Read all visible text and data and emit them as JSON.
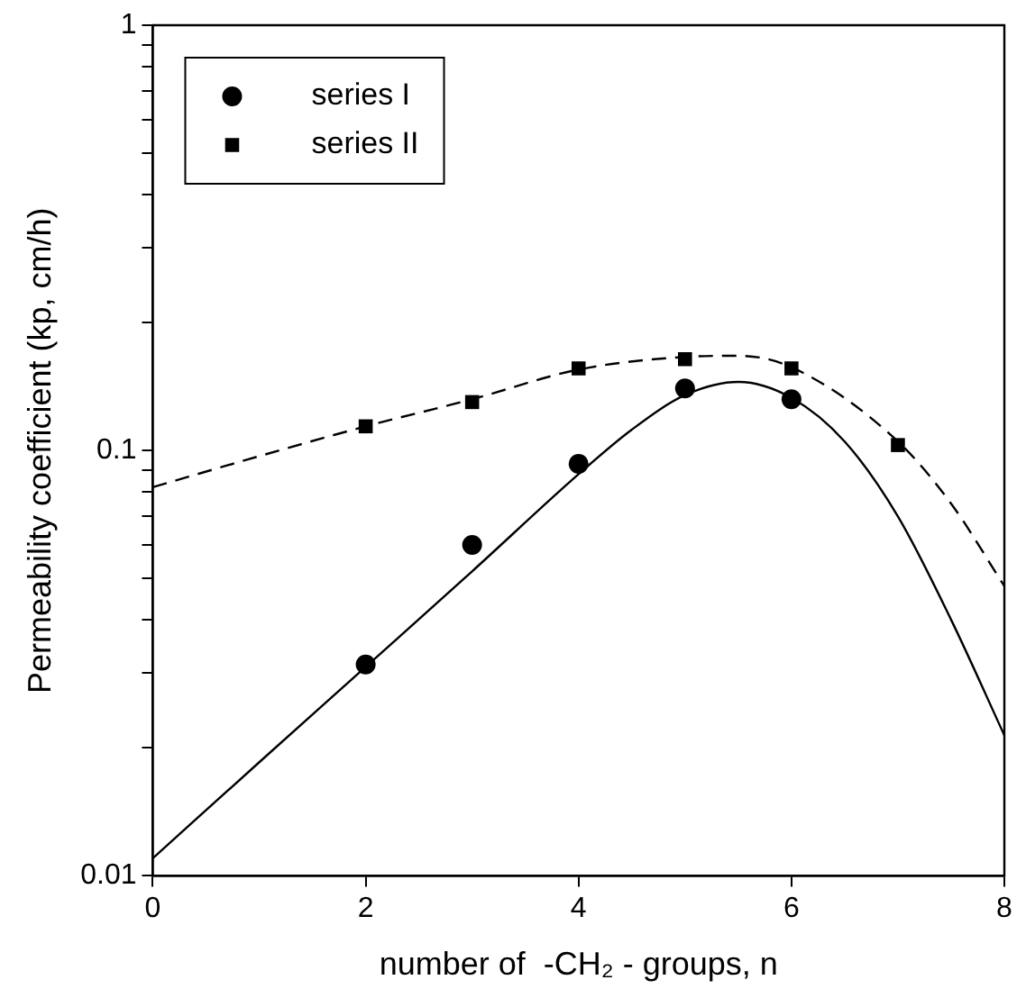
{
  "chart_data": {
    "type": "scatter",
    "xlabel": "number of  -CH₂ - groups, n",
    "ylabel": "Permeability coefficient (kp, cm/h)",
    "xlim": [
      0,
      8
    ],
    "xticks": [
      0,
      2,
      4,
      6,
      8
    ],
    "ylim": [
      0.01,
      1
    ],
    "yticks": [
      0.01,
      {
        "value": 0.02,
        "label": null
      },
      {
        "value": 0.03,
        "label": null
      },
      {
        "value": 0.04,
        "label": null
      },
      {
        "value": 0.05,
        "label": null
      },
      {
        "value": 0.06,
        "label": null
      },
      {
        "value": 0.07,
        "label": null
      },
      {
        "value": 0.08,
        "label": null
      },
      {
        "value": 0.09,
        "label": null
      },
      0.1,
      {
        "value": 0.2,
        "label": null
      },
      {
        "value": 0.3,
        "label": null
      },
      {
        "value": 0.4,
        "label": null
      },
      {
        "value": 0.5,
        "label": null
      },
      {
        "value": 0.6,
        "label": null
      },
      {
        "value": 0.7,
        "label": null
      },
      {
        "value": 0.8,
        "label": null
      },
      {
        "value": 0.9,
        "label": null
      },
      1
    ],
    "log": "y",
    "grid": false,
    "legend": "top left",
    "series": [
      {
        "name": "series I",
        "marker": "circle",
        "color": "#000000",
        "x": [
          2,
          3,
          4,
          5,
          6
        ],
        "values": [
          0.0314,
          0.06,
          0.093,
          0.14,
          0.132
        ]
      },
      {
        "name": "series II",
        "marker": "square",
        "color": "#000000",
        "x": [
          2,
          3,
          4,
          5,
          6,
          7
        ],
        "values": [
          0.114,
          0.13,
          0.156,
          0.164,
          0.156,
          0.103
        ]
      },
      {
        "type": "line",
        "marker": "none",
        "line_style": "solid",
        "color": "#000000",
        "x": [
          0,
          1,
          2,
          3,
          4,
          4.5,
          5,
          5.5,
          6,
          6.5,
          7,
          7.5,
          8
        ],
        "values": [
          0.011,
          0.0185,
          0.031,
          0.052,
          0.088,
          0.112,
          0.135,
          0.145,
          0.133,
          0.105,
          0.07,
          0.04,
          0.0214
        ]
      },
      {
        "type": "line",
        "marker": "none",
        "line_style": "dashed",
        "color": "#000000",
        "x": [
          0,
          1,
          2,
          3,
          4,
          5,
          5.5,
          6,
          7,
          7.5,
          8
        ],
        "values": [
          0.082,
          0.097,
          0.114,
          0.132,
          0.155,
          0.166,
          0.167,
          0.157,
          0.105,
          0.075,
          0.048
        ]
      }
    ]
  }
}
